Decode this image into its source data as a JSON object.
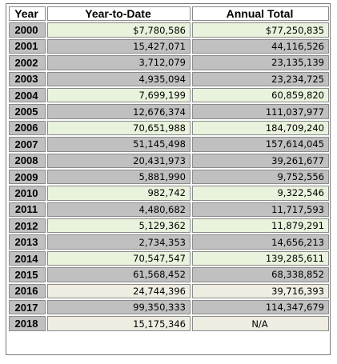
{
  "headers": {
    "year": "Year",
    "ytd": "Year-to-Date",
    "annual": "Annual Total"
  },
  "row_colors": {
    "green": "#e8f2dc",
    "gray": "#c0c0c0",
    "cream": "#efede2"
  },
  "rows": [
    {
      "year": "2000",
      "ytd": "$7,780,586",
      "annual": "$77,250,835",
      "shade": "green"
    },
    {
      "year": "2001",
      "ytd": "15,427,071",
      "annual": "44,116,526",
      "shade": "gray"
    },
    {
      "year": "2002",
      "ytd": "3,712,079",
      "annual": "23,135,139",
      "shade": "gray"
    },
    {
      "year": "2003",
      "ytd": "4,935,094",
      "annual": "23,234,725",
      "shade": "gray"
    },
    {
      "year": "2004",
      "ytd": "7,699,199",
      "annual": "60,859,820",
      "shade": "green"
    },
    {
      "year": "2005",
      "ytd": "12,676,374",
      "annual": "111,037,977",
      "shade": "gray"
    },
    {
      "year": "2006",
      "ytd": "70,651,988",
      "annual": "184,709,240",
      "shade": "green"
    },
    {
      "year": "2007",
      "ytd": "51,145,498",
      "annual": "157,614,045",
      "shade": "gray"
    },
    {
      "year": "2008",
      "ytd": "20,431,973",
      "annual": "39,261,677",
      "shade": "gray"
    },
    {
      "year": "2009",
      "ytd": "5,881,990",
      "annual": "9,752,556",
      "shade": "gray"
    },
    {
      "year": "2010",
      "ytd": "982,742",
      "annual": "9,322,546",
      "shade": "green"
    },
    {
      "year": "2011",
      "ytd": "4,480,682",
      "annual": "11,717,593",
      "shade": "gray"
    },
    {
      "year": "2012",
      "ytd": "5,129,362",
      "annual": "11,879,291",
      "shade": "green"
    },
    {
      "year": "2013",
      "ytd": "2,734,353",
      "annual": "14,656,213",
      "shade": "gray"
    },
    {
      "year": "2014",
      "ytd": "70,547,547",
      "annual": "139,285,611",
      "shade": "green"
    },
    {
      "year": "2015",
      "ytd": "61,568,452",
      "annual": "68,338,852",
      "shade": "gray"
    },
    {
      "year": "2016",
      "ytd": "24,744,396",
      "annual": "39,716,393",
      "shade": "cream"
    },
    {
      "year": "2017",
      "ytd": "99,350,333",
      "annual": "114,347,679",
      "shade": "gray"
    },
    {
      "year": "2018",
      "ytd": "15,175,346",
      "annual": "N/A",
      "shade": "cream"
    }
  ]
}
